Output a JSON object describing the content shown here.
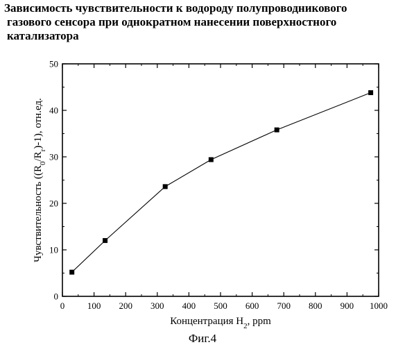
{
  "title_lines": [
    "Зависимость чувствительности к водороду полупроводникового",
    "газового сенсора при однократном нанесении поверхностного",
    "катализатора"
  ],
  "figure_caption": "Фиг.4",
  "chart_data": {
    "type": "line",
    "x": [
      30,
      135,
      325,
      470,
      678,
      975
    ],
    "values": [
      5.2,
      12.0,
      23.6,
      29.4,
      35.8,
      43.8
    ],
    "xlabel": {
      "prefix": "Концентрация H",
      "sub": "2",
      "suffix": ", ppm"
    },
    "ylabel": {
      "parts": [
        {
          "t": "Чувствительность ((R",
          "s": false
        },
        {
          "t": "0",
          "s": true
        },
        {
          "t": "/R",
          "s": false
        },
        {
          "t": "r",
          "s": true
        },
        {
          "t": ")-1), отн.ед.",
          "s": false
        }
      ]
    },
    "xlim": [
      0,
      1000
    ],
    "ylim": [
      0,
      50
    ],
    "xticks": [
      0,
      100,
      200,
      300,
      400,
      500,
      600,
      700,
      800,
      900,
      1000
    ],
    "yticks": [
      0,
      10,
      20,
      30,
      40,
      50
    ],
    "marker": "square",
    "color": "#000000",
    "grid": false,
    "legend": "none"
  }
}
